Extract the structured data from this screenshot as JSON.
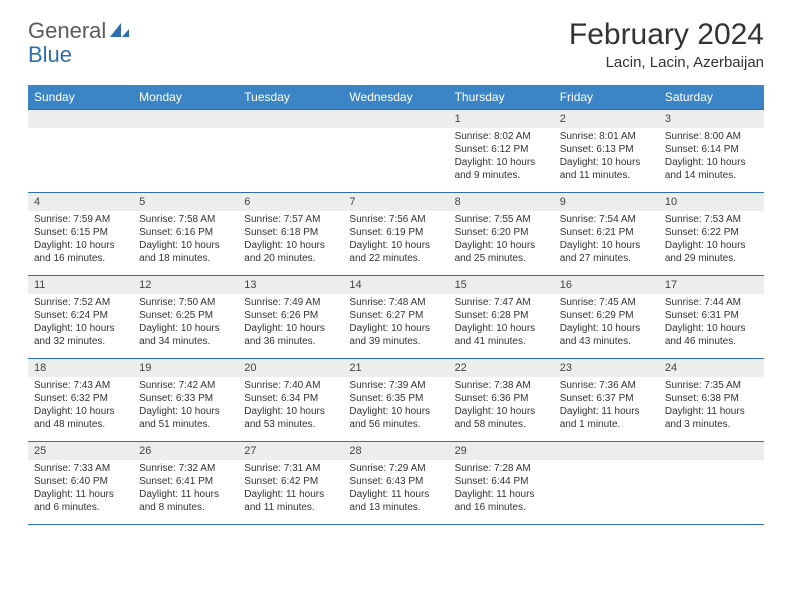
{
  "logo": {
    "word1": "General",
    "word2": "Blue"
  },
  "title": "February 2024",
  "location": "Lacin, Lacin, Azerbaijan",
  "colors": {
    "header_bg": "#3b85c6",
    "border": "#2d6fb4",
    "daynum_bg": "#eceded",
    "blue_text": "#2d6fb4"
  },
  "dayHeaders": [
    "Sunday",
    "Monday",
    "Tuesday",
    "Wednesday",
    "Thursday",
    "Friday",
    "Saturday"
  ],
  "weeks": [
    [
      {
        "num": "",
        "sunrise": "",
        "sunset": "",
        "daylight": ""
      },
      {
        "num": "",
        "sunrise": "",
        "sunset": "",
        "daylight": ""
      },
      {
        "num": "",
        "sunrise": "",
        "sunset": "",
        "daylight": ""
      },
      {
        "num": "",
        "sunrise": "",
        "sunset": "",
        "daylight": ""
      },
      {
        "num": "1",
        "sunrise": "Sunrise: 8:02 AM",
        "sunset": "Sunset: 6:12 PM",
        "daylight": "Daylight: 10 hours and 9 minutes."
      },
      {
        "num": "2",
        "sunrise": "Sunrise: 8:01 AM",
        "sunset": "Sunset: 6:13 PM",
        "daylight": "Daylight: 10 hours and 11 minutes."
      },
      {
        "num": "3",
        "sunrise": "Sunrise: 8:00 AM",
        "sunset": "Sunset: 6:14 PM",
        "daylight": "Daylight: 10 hours and 14 minutes."
      }
    ],
    [
      {
        "num": "4",
        "sunrise": "Sunrise: 7:59 AM",
        "sunset": "Sunset: 6:15 PM",
        "daylight": "Daylight: 10 hours and 16 minutes."
      },
      {
        "num": "5",
        "sunrise": "Sunrise: 7:58 AM",
        "sunset": "Sunset: 6:16 PM",
        "daylight": "Daylight: 10 hours and 18 minutes."
      },
      {
        "num": "6",
        "sunrise": "Sunrise: 7:57 AM",
        "sunset": "Sunset: 6:18 PM",
        "daylight": "Daylight: 10 hours and 20 minutes."
      },
      {
        "num": "7",
        "sunrise": "Sunrise: 7:56 AM",
        "sunset": "Sunset: 6:19 PM",
        "daylight": "Daylight: 10 hours and 22 minutes."
      },
      {
        "num": "8",
        "sunrise": "Sunrise: 7:55 AM",
        "sunset": "Sunset: 6:20 PM",
        "daylight": "Daylight: 10 hours and 25 minutes."
      },
      {
        "num": "9",
        "sunrise": "Sunrise: 7:54 AM",
        "sunset": "Sunset: 6:21 PM",
        "daylight": "Daylight: 10 hours and 27 minutes."
      },
      {
        "num": "10",
        "sunrise": "Sunrise: 7:53 AM",
        "sunset": "Sunset: 6:22 PM",
        "daylight": "Daylight: 10 hours and 29 minutes."
      }
    ],
    [
      {
        "num": "11",
        "sunrise": "Sunrise: 7:52 AM",
        "sunset": "Sunset: 6:24 PM",
        "daylight": "Daylight: 10 hours and 32 minutes."
      },
      {
        "num": "12",
        "sunrise": "Sunrise: 7:50 AM",
        "sunset": "Sunset: 6:25 PM",
        "daylight": "Daylight: 10 hours and 34 minutes."
      },
      {
        "num": "13",
        "sunrise": "Sunrise: 7:49 AM",
        "sunset": "Sunset: 6:26 PM",
        "daylight": "Daylight: 10 hours and 36 minutes."
      },
      {
        "num": "14",
        "sunrise": "Sunrise: 7:48 AM",
        "sunset": "Sunset: 6:27 PM",
        "daylight": "Daylight: 10 hours and 39 minutes."
      },
      {
        "num": "15",
        "sunrise": "Sunrise: 7:47 AM",
        "sunset": "Sunset: 6:28 PM",
        "daylight": "Daylight: 10 hours and 41 minutes."
      },
      {
        "num": "16",
        "sunrise": "Sunrise: 7:45 AM",
        "sunset": "Sunset: 6:29 PM",
        "daylight": "Daylight: 10 hours and 43 minutes."
      },
      {
        "num": "17",
        "sunrise": "Sunrise: 7:44 AM",
        "sunset": "Sunset: 6:31 PM",
        "daylight": "Daylight: 10 hours and 46 minutes."
      }
    ],
    [
      {
        "num": "18",
        "sunrise": "Sunrise: 7:43 AM",
        "sunset": "Sunset: 6:32 PM",
        "daylight": "Daylight: 10 hours and 48 minutes."
      },
      {
        "num": "19",
        "sunrise": "Sunrise: 7:42 AM",
        "sunset": "Sunset: 6:33 PM",
        "daylight": "Daylight: 10 hours and 51 minutes."
      },
      {
        "num": "20",
        "sunrise": "Sunrise: 7:40 AM",
        "sunset": "Sunset: 6:34 PM",
        "daylight": "Daylight: 10 hours and 53 minutes."
      },
      {
        "num": "21",
        "sunrise": "Sunrise: 7:39 AM",
        "sunset": "Sunset: 6:35 PM",
        "daylight": "Daylight: 10 hours and 56 minutes."
      },
      {
        "num": "22",
        "sunrise": "Sunrise: 7:38 AM",
        "sunset": "Sunset: 6:36 PM",
        "daylight": "Daylight: 10 hours and 58 minutes."
      },
      {
        "num": "23",
        "sunrise": "Sunrise: 7:36 AM",
        "sunset": "Sunset: 6:37 PM",
        "daylight": "Daylight: 11 hours and 1 minute."
      },
      {
        "num": "24",
        "sunrise": "Sunrise: 7:35 AM",
        "sunset": "Sunset: 6:38 PM",
        "daylight": "Daylight: 11 hours and 3 minutes."
      }
    ],
    [
      {
        "num": "25",
        "sunrise": "Sunrise: 7:33 AM",
        "sunset": "Sunset: 6:40 PM",
        "daylight": "Daylight: 11 hours and 6 minutes."
      },
      {
        "num": "26",
        "sunrise": "Sunrise: 7:32 AM",
        "sunset": "Sunset: 6:41 PM",
        "daylight": "Daylight: 11 hours and 8 minutes."
      },
      {
        "num": "27",
        "sunrise": "Sunrise: 7:31 AM",
        "sunset": "Sunset: 6:42 PM",
        "daylight": "Daylight: 11 hours and 11 minutes."
      },
      {
        "num": "28",
        "sunrise": "Sunrise: 7:29 AM",
        "sunset": "Sunset: 6:43 PM",
        "daylight": "Daylight: 11 hours and 13 minutes."
      },
      {
        "num": "29",
        "sunrise": "Sunrise: 7:28 AM",
        "sunset": "Sunset: 6:44 PM",
        "daylight": "Daylight: 11 hours and 16 minutes."
      },
      {
        "num": "",
        "sunrise": "",
        "sunset": "",
        "daylight": ""
      },
      {
        "num": "",
        "sunrise": "",
        "sunset": "",
        "daylight": ""
      }
    ]
  ]
}
